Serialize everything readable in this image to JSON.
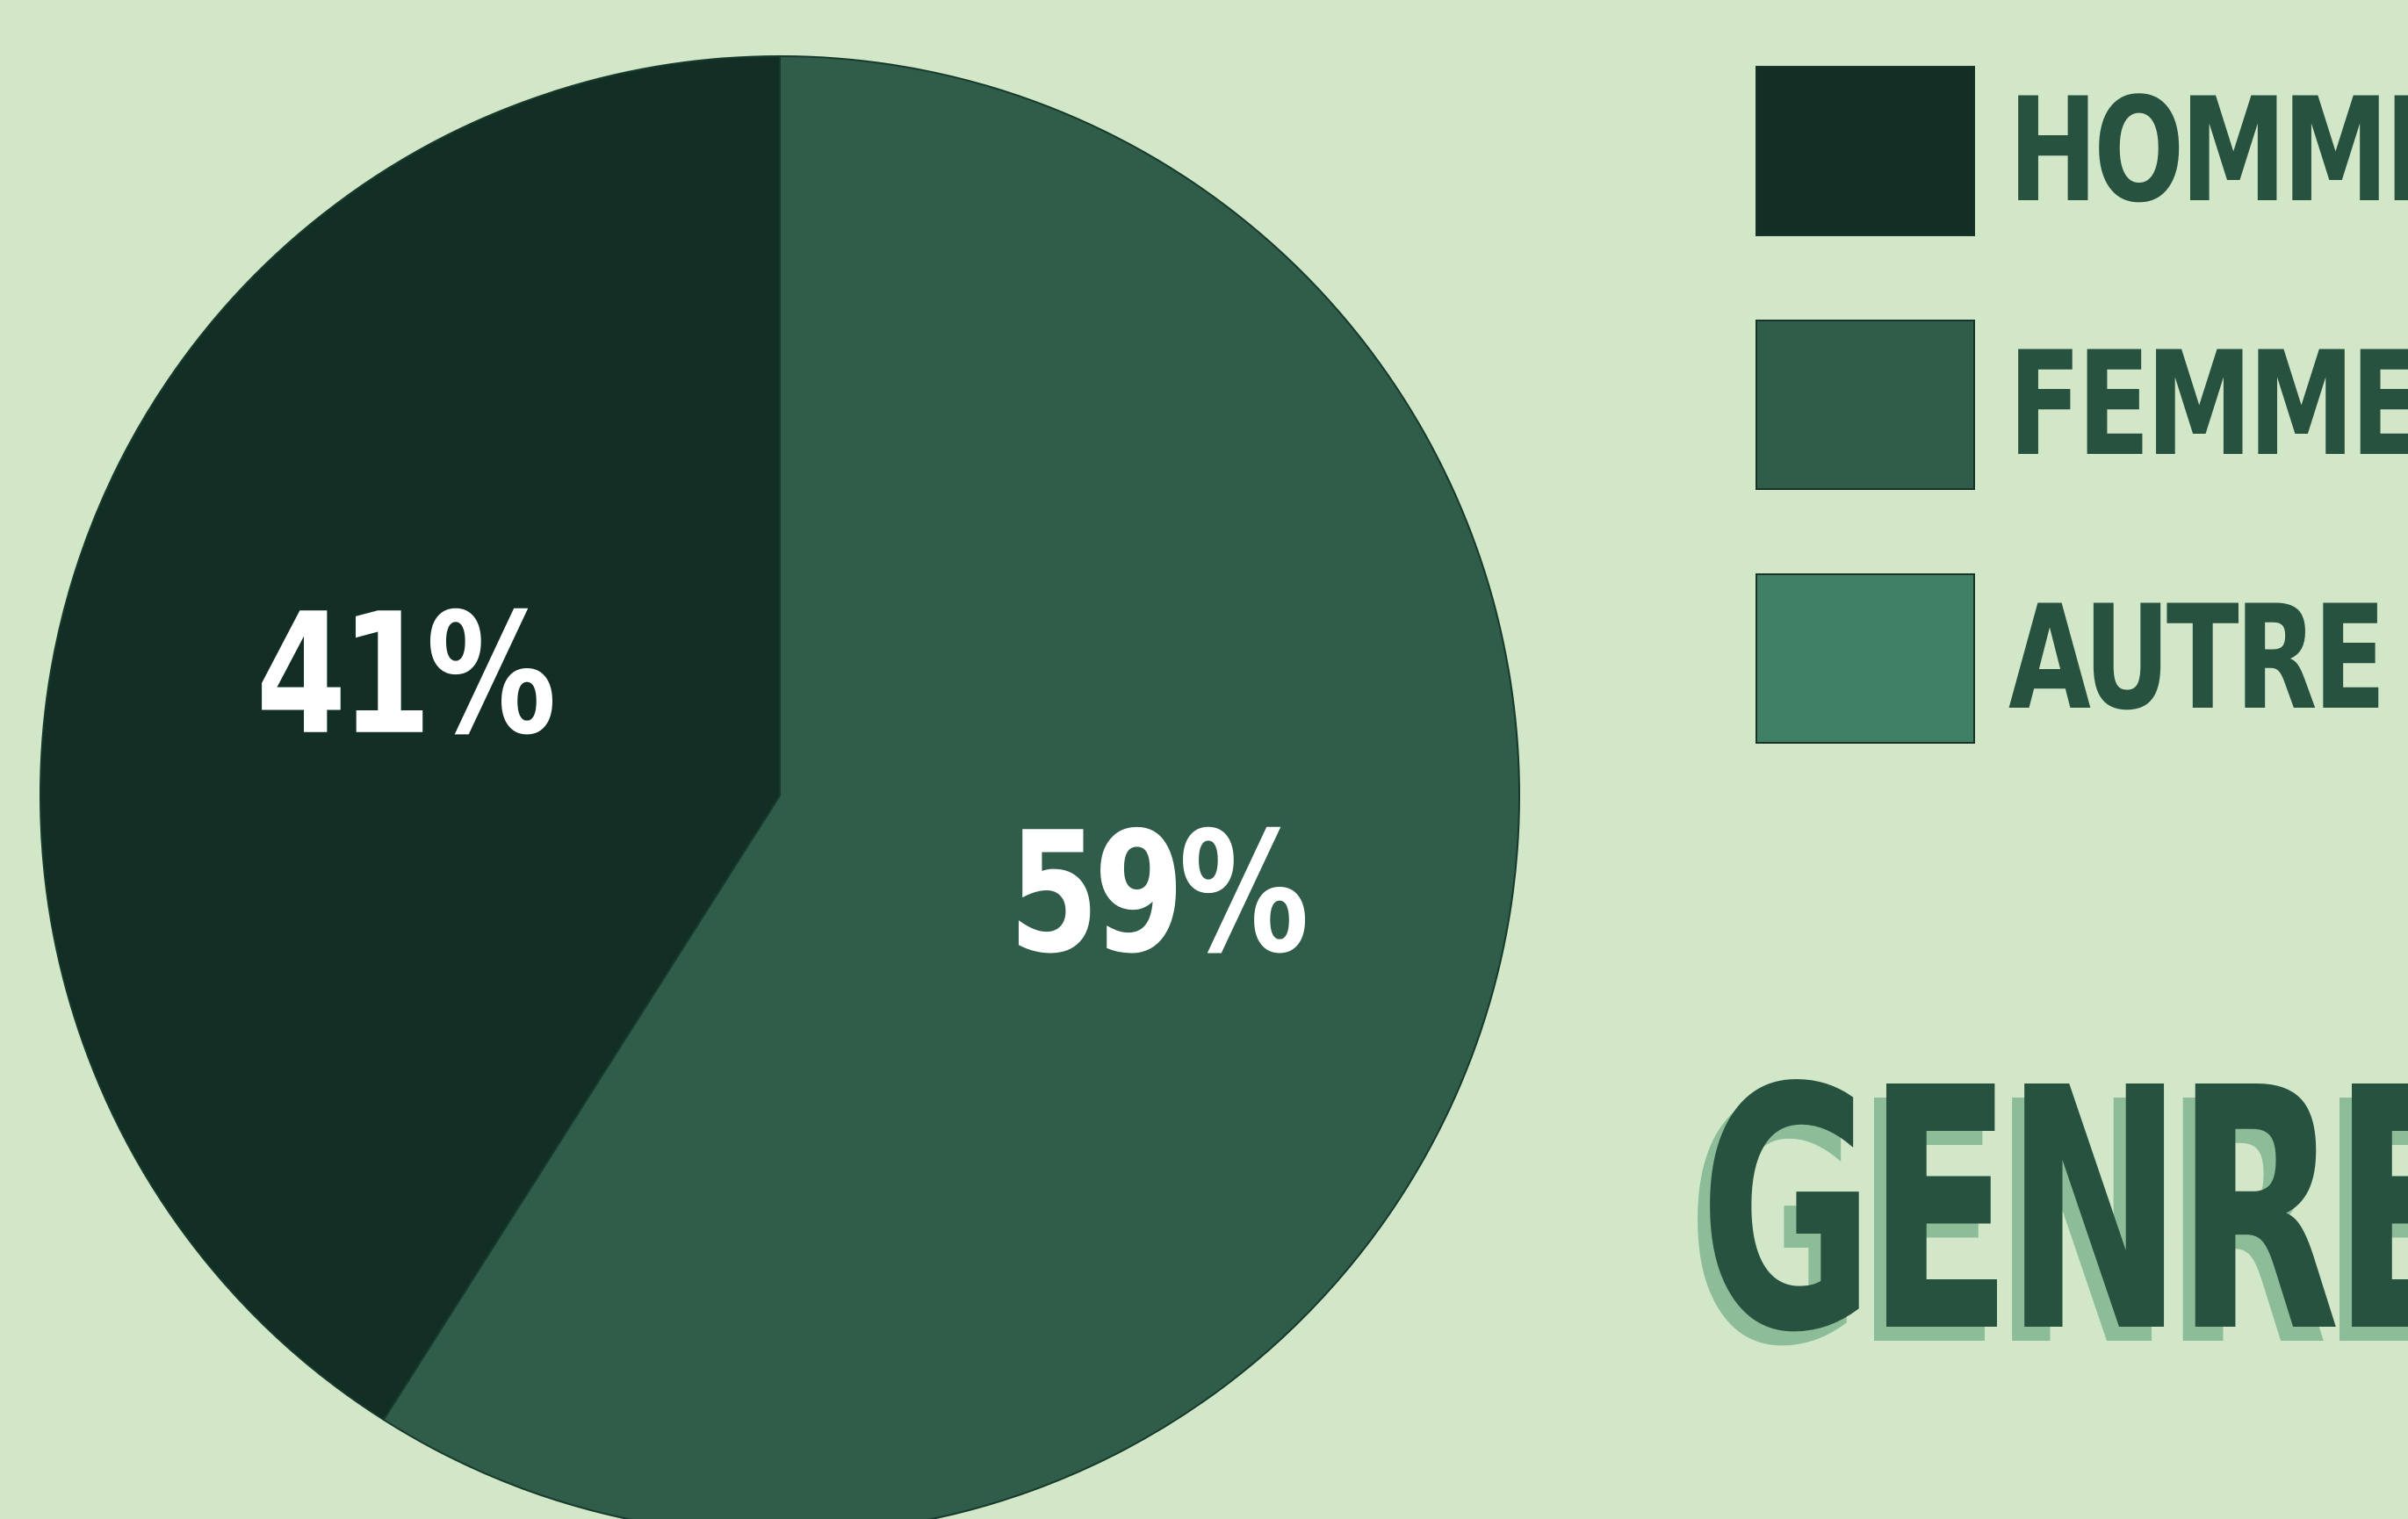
{
  "chart_data": {
    "type": "pie",
    "title": "GENRE",
    "categories": [
      "HOMME",
      "FEMME",
      "AUTRE"
    ],
    "values": [
      41,
      59,
      0
    ],
    "labels": [
      "41%",
      "59%",
      ""
    ],
    "colors": [
      "#132f25",
      "#2f5d4a",
      "#3f7f63"
    ],
    "legend_position": "top-right"
  }
}
